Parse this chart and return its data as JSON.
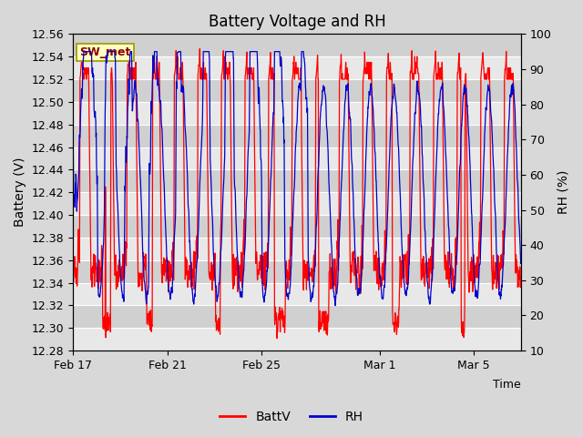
{
  "title": "Battery Voltage and RH",
  "xlabel": "Time",
  "ylabel_left": "Battery (V)",
  "ylabel_right": "RH (%)",
  "station_label": "SW_met",
  "legend_labels": [
    "BattV",
    "RH"
  ],
  "legend_colors": [
    "#FF0000",
    "#0000CC"
  ],
  "ylim_left": [
    12.28,
    12.56
  ],
  "ylim_right": [
    10,
    100
  ],
  "fig_bg": "#D8D8D8",
  "plot_bg_light": "#E8E8E8",
  "plot_bg_dark": "#D0D0D0",
  "grid_color": "#FFFFFF",
  "batt_color": "#FF0000",
  "rh_color": "#0000CC",
  "station_fg": "#8B0000",
  "station_bg": "#FFFFC0",
  "station_border": "#999900",
  "yticks_left": [
    12.28,
    12.3,
    12.32,
    12.34,
    12.36,
    12.38,
    12.4,
    12.42,
    12.44,
    12.46,
    12.48,
    12.5,
    12.52,
    12.54,
    12.56
  ],
  "yticks_right": [
    10,
    20,
    30,
    40,
    50,
    60,
    70,
    80,
    90,
    100
  ],
  "xtick_labels": [
    "Feb 17",
    "Feb 21",
    "Feb 25",
    "Mar 1",
    "Mar 5"
  ]
}
